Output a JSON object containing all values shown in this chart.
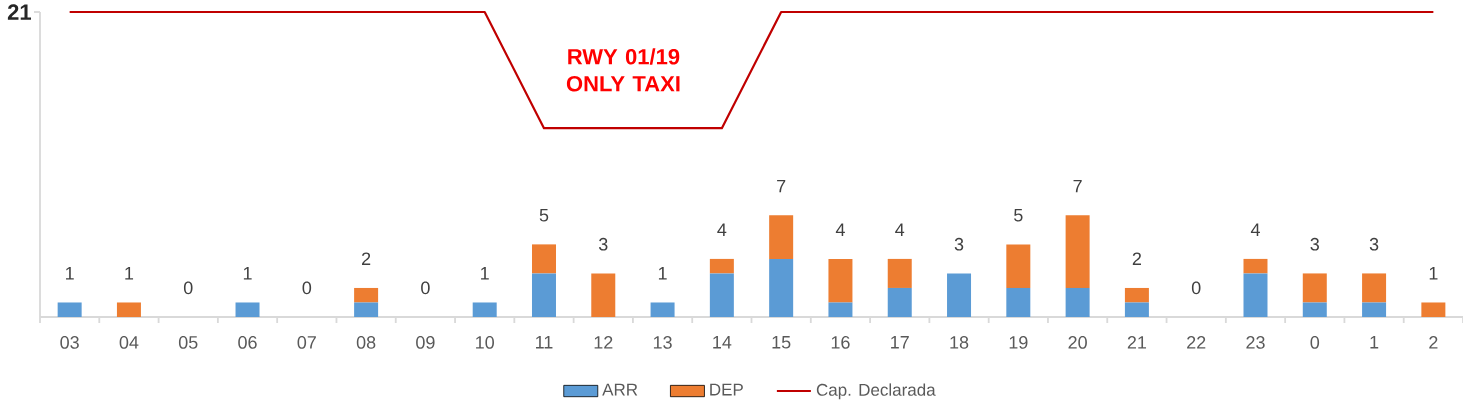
{
  "chart_data": {
    "type": "bar",
    "stacked": true,
    "categories": [
      "03",
      "04",
      "05",
      "06",
      "07",
      "08",
      "09",
      "10",
      "11",
      "12",
      "13",
      "14",
      "15",
      "16",
      "17",
      "18",
      "19",
      "20",
      "21",
      "22",
      "23",
      "0",
      "1",
      "2"
    ],
    "series": [
      {
        "name": "ARR",
        "color": "#5b9bd5",
        "values": [
          1,
          0,
          0,
          1,
          0,
          1,
          0,
          1,
          3,
          0,
          1,
          3,
          4,
          1,
          2,
          3,
          2,
          2,
          1,
          0,
          3,
          1,
          1,
          0
        ]
      },
      {
        "name": "DEP",
        "color": "#ed7d31",
        "values": [
          0,
          1,
          0,
          0,
          0,
          1,
          0,
          0,
          2,
          3,
          0,
          1,
          3,
          3,
          2,
          0,
          3,
          5,
          1,
          0,
          1,
          2,
          2,
          1
        ]
      },
      {
        "name": "Cap. Declarada",
        "type": "line",
        "color": "#c00000",
        "line_style": "solid",
        "values": [
          21,
          21,
          21,
          21,
          21,
          21,
          21,
          21,
          13,
          13,
          13,
          13,
          21,
          21,
          21,
          21,
          21,
          21,
          21,
          21,
          21,
          21,
          21,
          21
        ]
      }
    ],
    "totals": [
      "1",
      "1",
      "0",
      "1",
      "0",
      "2",
      "0",
      "1",
      "5",
      "3",
      "1",
      "4",
      "7",
      "4",
      "4",
      "3",
      "5",
      "7",
      "2",
      "0",
      "4",
      "3",
      "3",
      "1"
    ],
    "ylim": [
      0,
      21
    ],
    "yticks": [
      21
    ],
    "legend": "bottom",
    "annotations": [
      "RWY 01/19 ONLY TAXI"
    ]
  }
}
